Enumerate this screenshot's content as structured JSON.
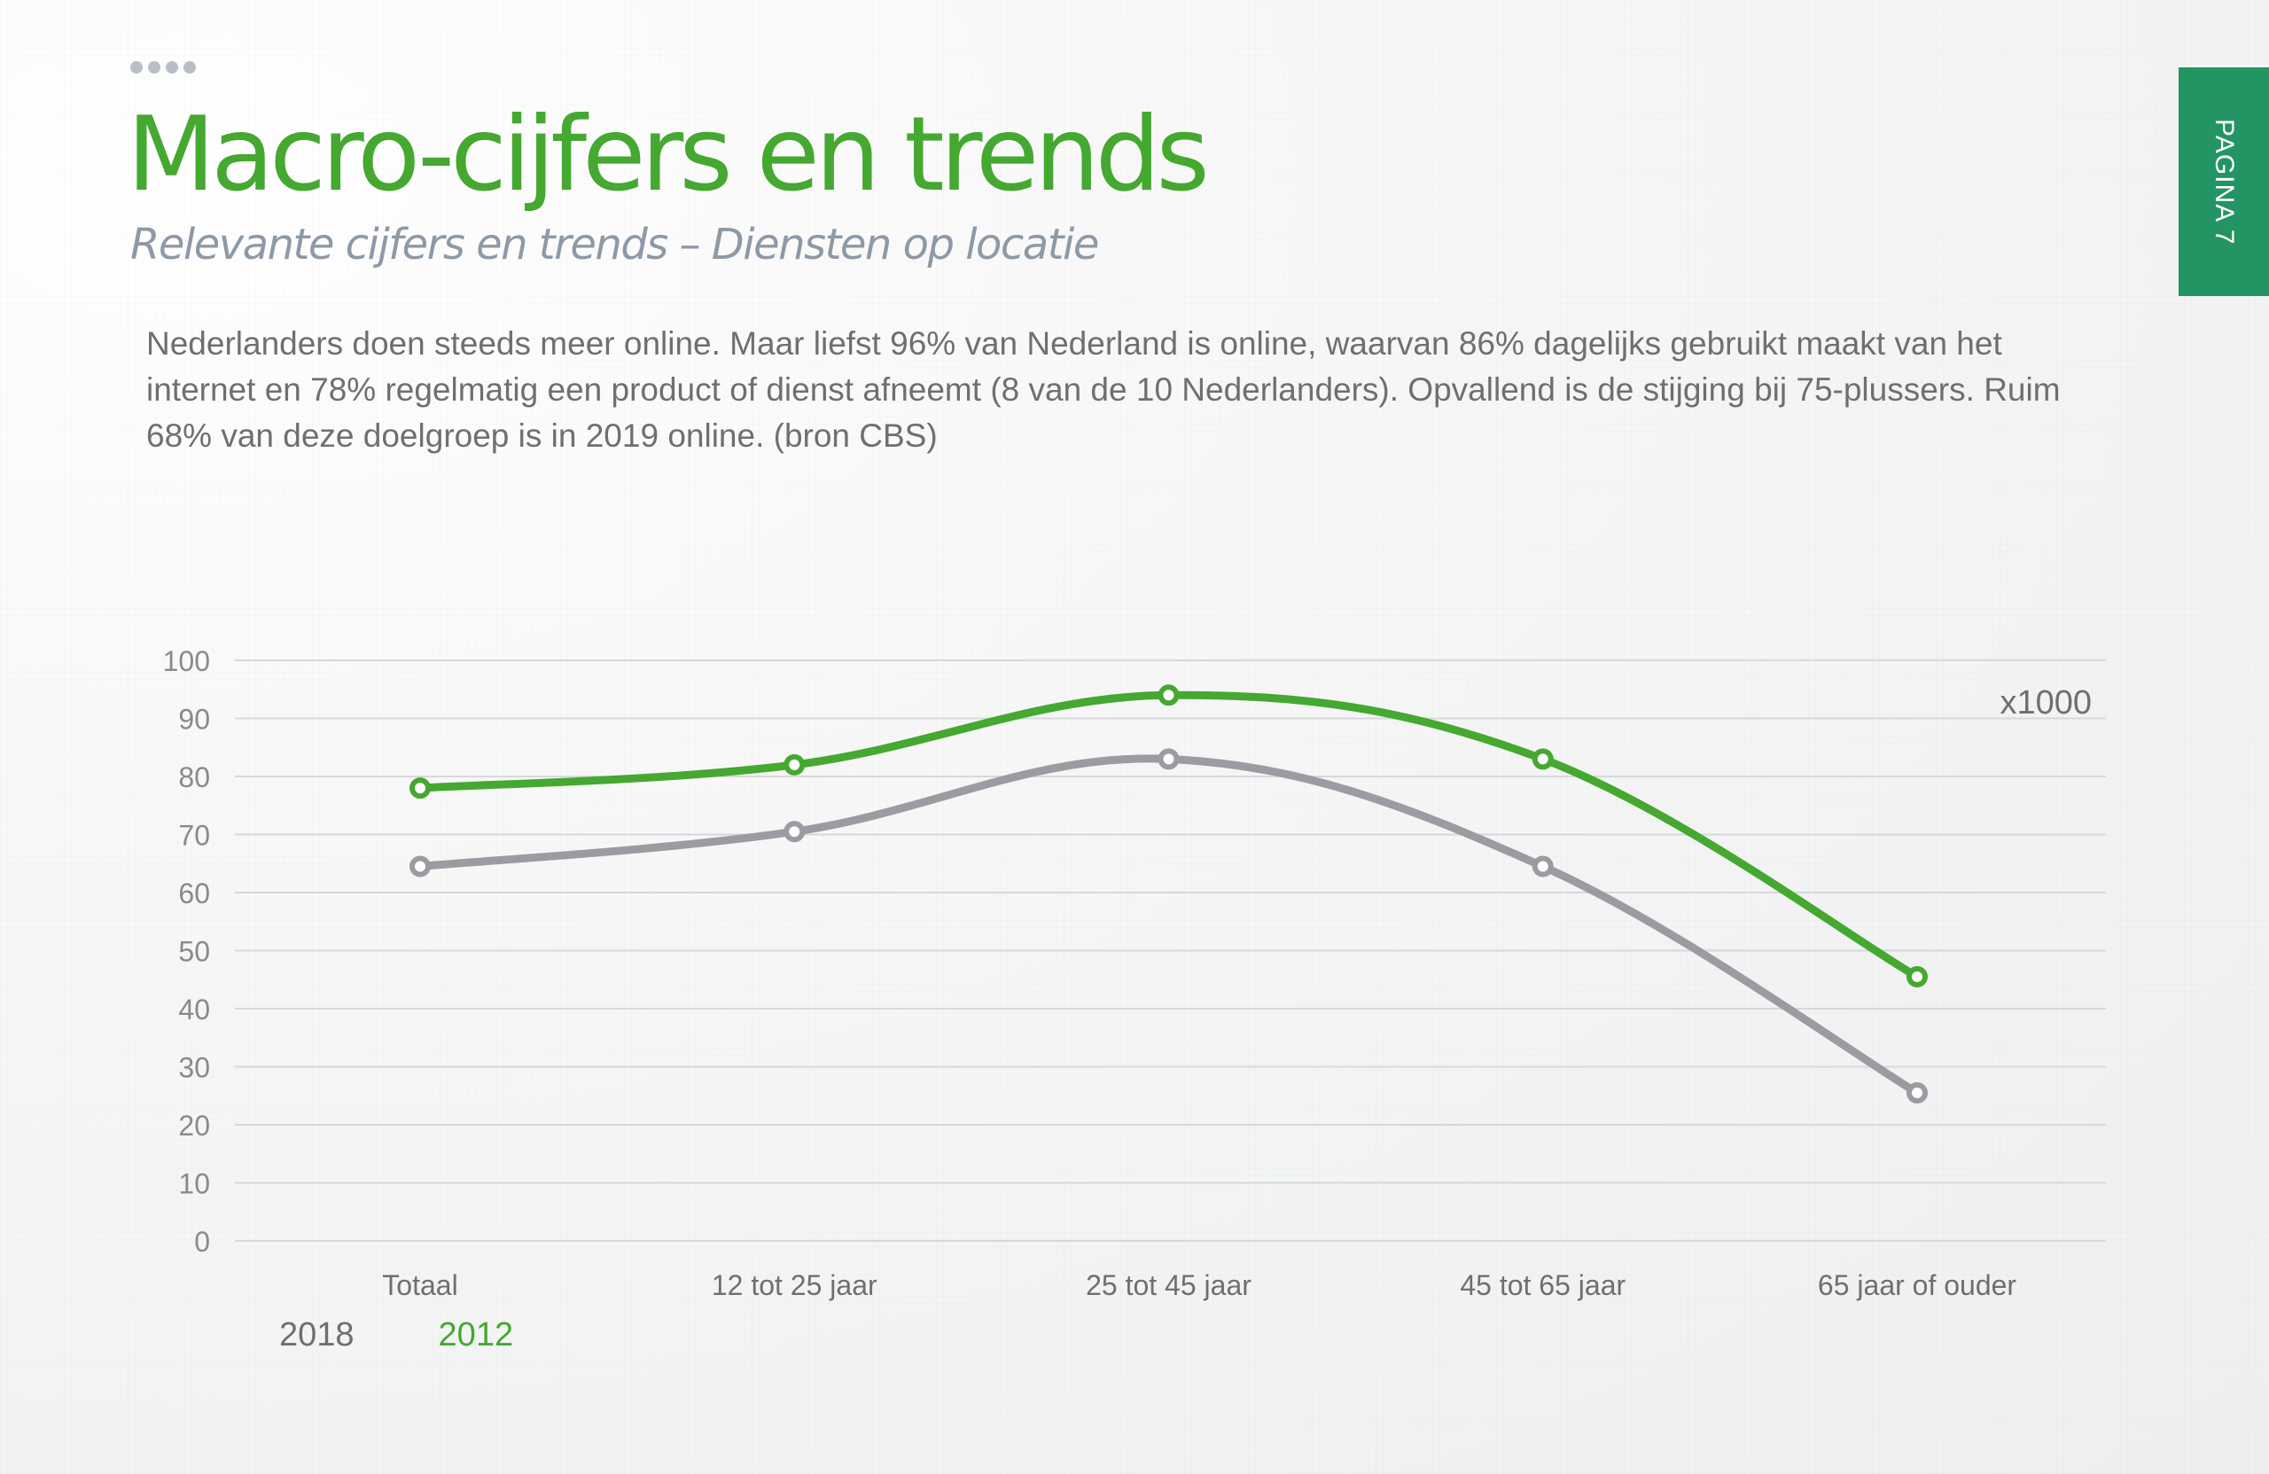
{
  "header": {
    "title": "Macro-cijfers en trends",
    "subtitle": "Relevante cijfers en trends – Diensten op locatie"
  },
  "page_label": "PAGINA 7",
  "body_text": "Nederlanders doen steeds meer online. Maar liefst 96% van Nederland is online, waarvan 86% dagelijks gebruikt maakt van het internet en 78% regelmatig een product of dienst afneemt (8 van de 10 Nederlanders). Opvallend is de stijging bij 75-plussers. Ruim 68% van deze doelgroep is in 2019 online. (bron CBS)",
  "colors": {
    "title_green": "#45a830",
    "subtitle_gray": "#8e99a7",
    "tab_green": "#239562",
    "series_green": "#45a830",
    "series_gray": "#9a9ca1"
  },
  "chart_data": {
    "type": "line",
    "unit_label": "x1000",
    "categories": [
      "Totaal",
      "12 tot 25 jaar",
      "25 tot 45 jaar",
      "45 tot 65 jaar",
      "65 jaar of ouder"
    ],
    "yticks": [
      "0",
      "10",
      "20",
      "30",
      "40",
      "50",
      "60",
      "70",
      "80",
      "90",
      "100"
    ],
    "ylim": [
      0,
      100
    ],
    "grid": true,
    "legend_position": "bottom-left",
    "series": [
      {
        "name": "2018",
        "color": "#9a9ca1",
        "values": [
          64.5,
          70.5,
          83,
          64.5,
          25.5
        ]
      },
      {
        "name": "2012",
        "color": "#45a830",
        "values": [
          78,
          82,
          94,
          83,
          45.5
        ]
      }
    ]
  }
}
